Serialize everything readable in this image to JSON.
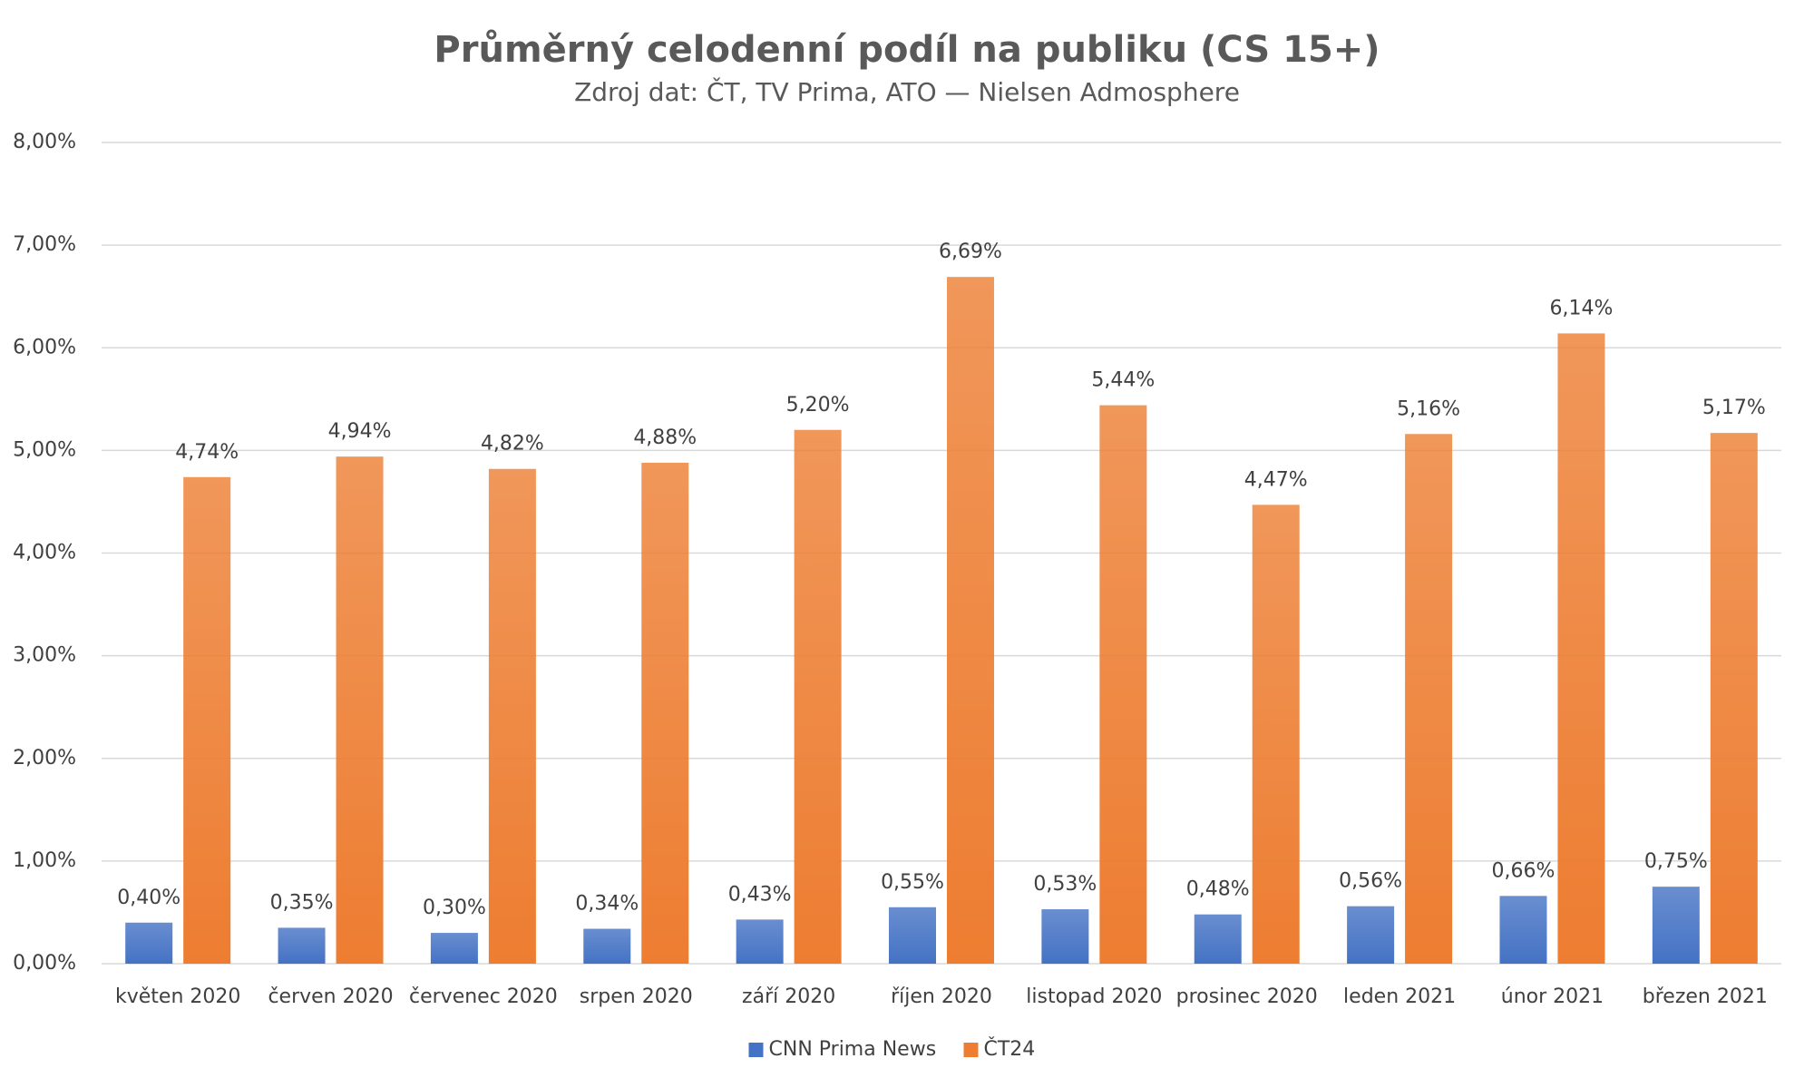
{
  "chart_data": {
    "type": "bar",
    "title": "Průměrný celodenní podíl na publiku (CS 15+)",
    "subtitle": "Zdroj dat: ČT, TV Prima, ATO — Nielsen Admosphere",
    "categories": [
      "květen 2020",
      "červen 2020",
      "červenec 2020",
      "srpen 2020",
      "září 2020",
      "říjen 2020",
      "listopad 2020",
      "prosinec 2020",
      "leden 2021",
      "únor 2021",
      "březen 2021"
    ],
    "series": [
      {
        "name": "CNN Prima News",
        "color": "#4472c4",
        "values": [
          0.4,
          0.35,
          0.3,
          0.34,
          0.43,
          0.55,
          0.53,
          0.48,
          0.56,
          0.66,
          0.75
        ],
        "value_labels": [
          "0,40%",
          "0,35%",
          "0,30%",
          "0,34%",
          "0,43%",
          "0,55%",
          "0,53%",
          "0,48%",
          "0,56%",
          "0,66%",
          "0,75%"
        ]
      },
      {
        "name": "ČT24",
        "color": "#ed7d31",
        "values": [
          4.74,
          4.94,
          4.82,
          4.88,
          5.2,
          6.69,
          5.44,
          4.47,
          5.16,
          6.14,
          5.17
        ],
        "value_labels": [
          "4,74%",
          "4,94%",
          "4,82%",
          "4,88%",
          "5,20%",
          "6,69%",
          "5,44%",
          "4,47%",
          "5,16%",
          "6,14%",
          "5,17%"
        ]
      }
    ],
    "ylim": [
      0,
      8
    ],
    "yticks": [
      {
        "value": 0,
        "label": "0,00%"
      },
      {
        "value": 1,
        "label": "1,00%"
      },
      {
        "value": 2,
        "label": "2,00%"
      },
      {
        "value": 3,
        "label": "3,00%"
      },
      {
        "value": 4,
        "label": "4,00%"
      },
      {
        "value": 5,
        "label": "5,00%"
      },
      {
        "value": 6,
        "label": "6,00%"
      },
      {
        "value": 7,
        "label": "7,00%"
      },
      {
        "value": 8,
        "label": "8,00%"
      }
    ],
    "grid": true,
    "legend": "bottom"
  }
}
